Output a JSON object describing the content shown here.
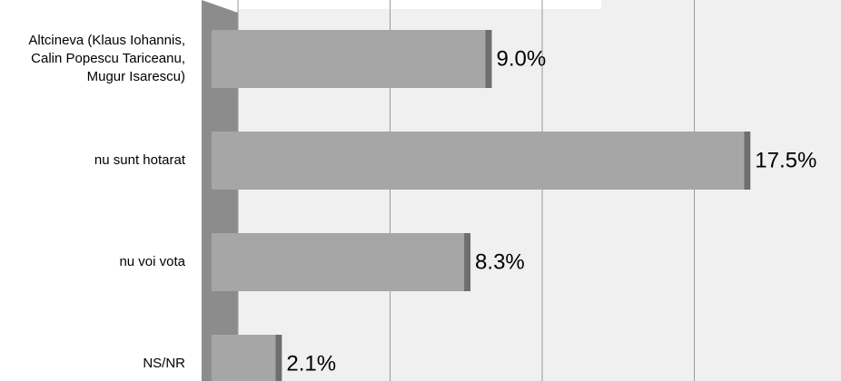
{
  "chart_data": {
    "type": "bar",
    "orientation": "horizontal",
    "categories": [
      "Altcineva (Klaus Iohannis, Calin Popescu Tariceanu, Mugur Isarescu)",
      "nu sunt hotarat",
      "nu voi vota",
      "NS/NR"
    ],
    "values": [
      9.0,
      17.5,
      8.3,
      2.1
    ],
    "value_labels": [
      "9.0%",
      "17.5%",
      "8.3%",
      "2.1%"
    ],
    "color": "#a6a6a6",
    "xlim": [
      0,
      20
    ],
    "xticks": [
      0,
      5,
      10,
      15,
      20
    ],
    "grid": true
  }
}
